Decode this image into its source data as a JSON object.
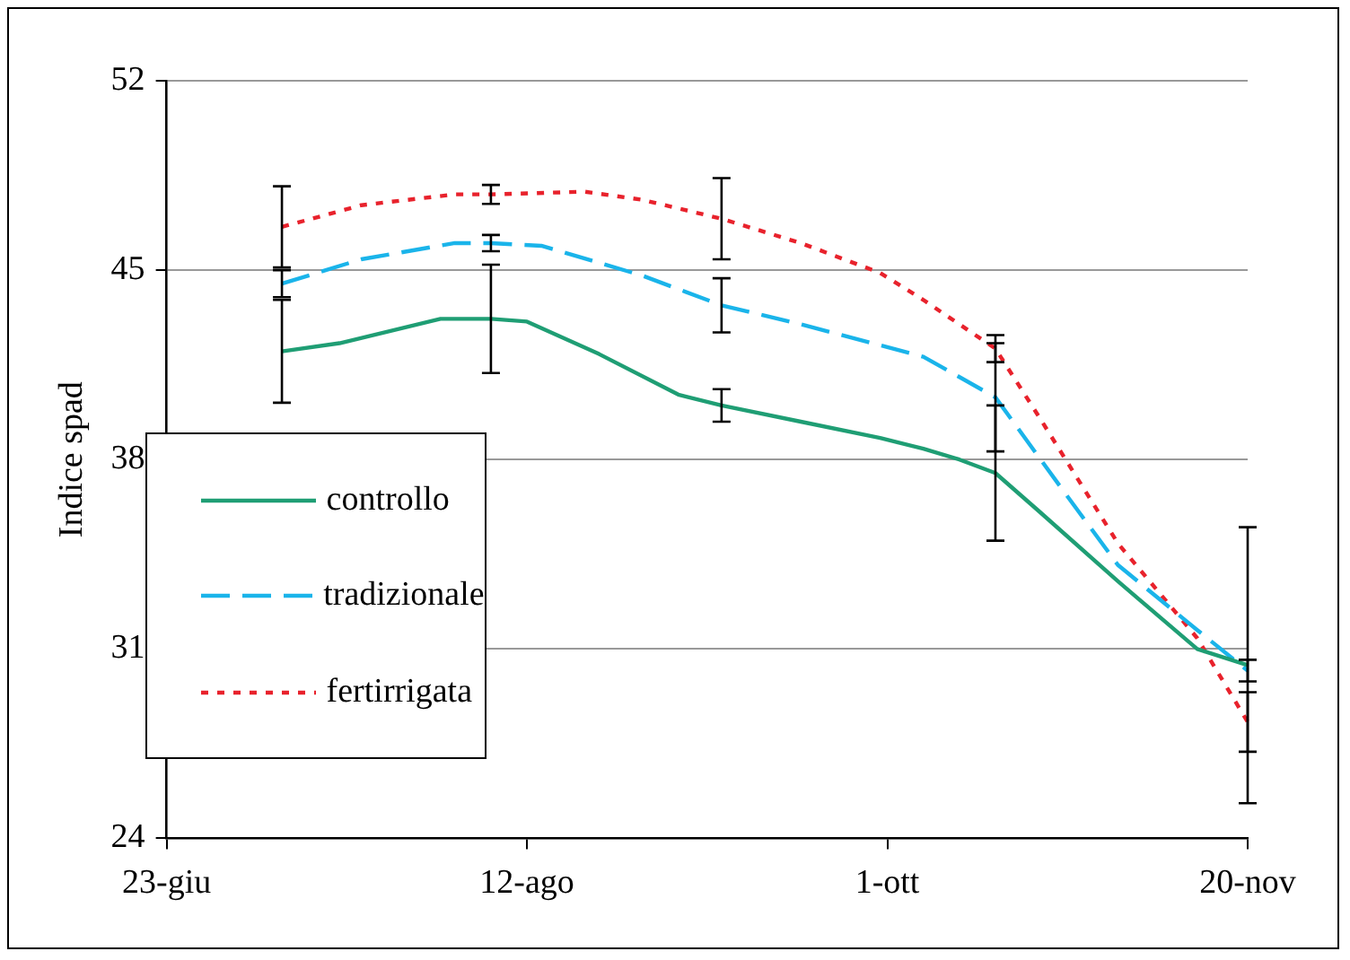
{
  "chart_data": {
    "type": "line",
    "ylabel": "Indice spad",
    "xlim": [
      "--06-23",
      "--11-20"
    ],
    "xticks": [
      {
        "value": "--06-23",
        "label": "23-giu"
      },
      {
        "value": "--08-12",
        "label": "12-ago"
      },
      {
        "value": "--10-01",
        "label": "1-ott"
      },
      {
        "value": "--11-20",
        "label": "20-nov"
      }
    ],
    "ylim": [
      24,
      52
    ],
    "yticks": [
      24,
      31,
      38,
      45,
      52
    ],
    "grid": "y",
    "legend": "left",
    "marker": "none",
    "series": [
      {
        "name": "controllo",
        "color": "#1f9e74",
        "line_style": "solid",
        "x": [
          "--07-09",
          "--07-17",
          "--07-31",
          "--08-07",
          "--08-12",
          "--08-22",
          "--09-02",
          "--09-08",
          "--09-19",
          "--09-30",
          "--10-06",
          "--10-11",
          "--10-16",
          "--10-22",
          "--11-02",
          "--11-13",
          "--11-20"
        ],
        "values": [
          42.0,
          42.3,
          43.2,
          43.2,
          43.1,
          41.9,
          40.4,
          40.0,
          39.4,
          38.8,
          38.4,
          38.0,
          37.5,
          36.1,
          33.5,
          31.0,
          30.4
        ],
        "errors": [
          1.9,
          null,
          null,
          2.0,
          null,
          null,
          null,
          0.6,
          null,
          null,
          null,
          null,
          2.5,
          null,
          null,
          null,
          5.1
        ]
      },
      {
        "name": "tradizionale",
        "color": "#1ab4ea",
        "line_style": "dashed",
        "x": [
          "--07-09",
          "--07-20",
          "--08-02",
          "--08-07",
          "--08-14",
          "--08-28",
          "--09-08",
          "--09-19",
          "--10-06",
          "--10-16",
          "--10-25",
          "--11-02",
          "--11-13",
          "--11-20"
        ],
        "values": [
          44.5,
          45.4,
          46.0,
          46.0,
          45.9,
          44.8,
          43.7,
          43.0,
          41.8,
          40.3,
          37.0,
          34.1,
          31.7,
          30.2
        ],
        "errors": [
          0.5,
          null,
          null,
          0.3,
          null,
          null,
          1.0,
          null,
          null,
          2.0,
          null,
          null,
          null,
          0.4
        ]
      },
      {
        "name": "fertirrigata",
        "color": "#e8222c",
        "line_style": "dotted",
        "x": [
          "--07-09",
          "--07-20",
          "--08-02",
          "--08-07",
          "--08-20",
          "--08-28",
          "--09-08",
          "--09-19",
          "--09-30",
          "--10-06",
          "--10-16",
          "--10-22",
          "--11-02",
          "--11-13",
          "--11-20"
        ],
        "values": [
          46.6,
          47.4,
          47.8,
          47.8,
          47.9,
          47.6,
          46.9,
          46.0,
          44.9,
          43.9,
          42.1,
          39.6,
          34.9,
          31.4,
          28.3
        ],
        "errors": [
          1.5,
          null,
          null,
          0.35,
          null,
          null,
          1.5,
          null,
          null,
          null,
          0.5,
          null,
          null,
          null,
          1.1
        ]
      }
    ]
  }
}
